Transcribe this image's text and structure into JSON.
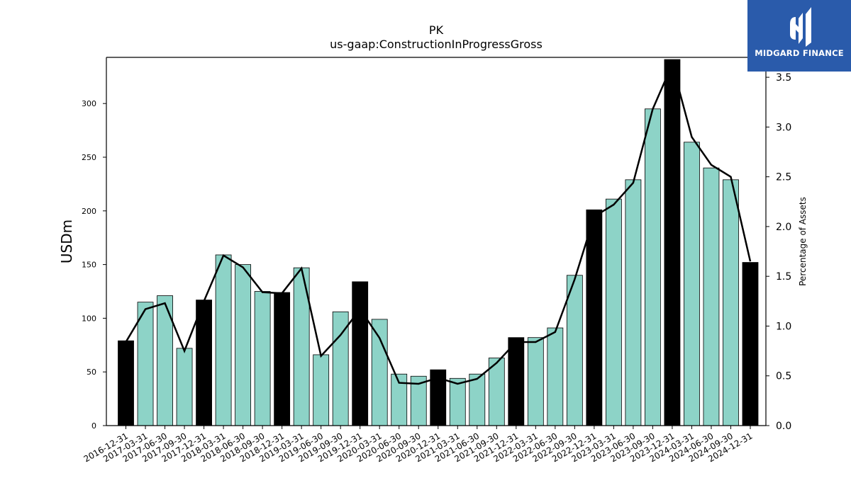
{
  "logo": {
    "text": "MIDGARD FINANCE"
  },
  "colors": {
    "bar_default": "#8dd3c7",
    "bar_highlight": "#000000",
    "line": "#000000",
    "logo_bg": "#2a5bab"
  },
  "chart_data": {
    "type": "bar",
    "title": "PK",
    "subtitle": "us-gaap:ConstructionInProgressGross",
    "ylabel": "USDm",
    "y2label": "Percentage of Assets",
    "ylim": [
      0,
      343
    ],
    "y2lim": [
      0,
      3.7
    ],
    "yticks": [
      0,
      50,
      100,
      150,
      200,
      250,
      300
    ],
    "y2ticks": [
      "0.0",
      "0.5",
      "1.0",
      "1.5",
      "2.0",
      "2.5",
      "3.0",
      "3.5"
    ],
    "categories": [
      "2016-12-31",
      "2017-03-31",
      "2017-06-30",
      "2017-09-30",
      "2017-12-31",
      "2018-03-31",
      "2018-06-30",
      "2018-09-30",
      "2018-12-31",
      "2019-03-31",
      "2019-06-30",
      "2019-09-30",
      "2019-12-31",
      "2020-03-31",
      "2020-06-30",
      "2020-09-30",
      "2020-12-31",
      "2021-03-31",
      "2021-06-30",
      "2021-09-30",
      "2021-12-31",
      "2022-03-31",
      "2022-06-30",
      "2022-09-30",
      "2022-12-31",
      "2023-03-31",
      "2023-06-30",
      "2023-09-30",
      "2023-12-31",
      "2024-03-31",
      "2024-06-30",
      "2024-09-30",
      "2024-12-31"
    ],
    "series": [
      {
        "type": "bar",
        "values": [
          79,
          115,
          121,
          72,
          117,
          159,
          150,
          125,
          124,
          147,
          66,
          106,
          134,
          99,
          48,
          46,
          52,
          44,
          48,
          63,
          82,
          82,
          91,
          140,
          201,
          211,
          229,
          295,
          341,
          264,
          240,
          229,
          152
        ]
      },
      {
        "type": "line",
        "axis": "right",
        "values": [
          0.84,
          1.17,
          1.23,
          0.75,
          1.25,
          1.71,
          1.59,
          1.34,
          1.33,
          1.58,
          0.7,
          0.91,
          1.17,
          0.88,
          0.43,
          0.42,
          0.48,
          0.42,
          0.47,
          0.63,
          0.84,
          0.84,
          0.94,
          1.47,
          2.1,
          2.22,
          2.44,
          3.18,
          3.63,
          2.9,
          2.62,
          2.5,
          1.65
        ]
      }
    ],
    "highlight": "year-end (12-31) bars drawn in black",
    "grid": false
  }
}
